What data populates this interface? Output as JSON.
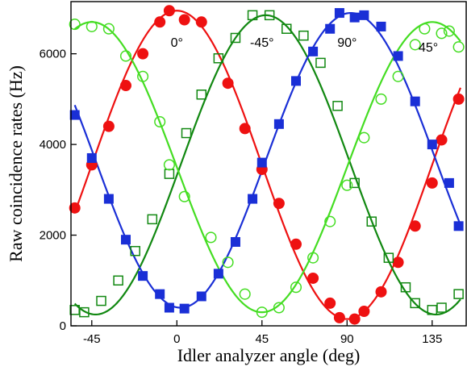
{
  "chart_data": {
    "type": "scatter",
    "title": "",
    "xlabel": "Idler analyzer angle (deg)",
    "ylabel": "Raw coincidence rates (Hz)",
    "xlim": [
      -56,
      153
    ],
    "ylim": [
      0,
      7150
    ],
    "xticks": [
      -45,
      0,
      45,
      90,
      135
    ],
    "yticks": [
      0,
      2000,
      4000,
      6000
    ],
    "grid": false,
    "series": [
      {
        "name": "0°",
        "color": "#ee1111",
        "marker": "filled-circle",
        "fit": {
          "offset": 3550,
          "amplitude": 3400,
          "center": 0
        },
        "label_pos": [
          0,
          6150
        ],
        "points": [
          {
            "x": -54,
            "y": 2600
          },
          {
            "x": -45,
            "y": 3550
          },
          {
            "x": -36,
            "y": 4400
          },
          {
            "x": -27,
            "y": 5300
          },
          {
            "x": -18,
            "y": 6000
          },
          {
            "x": -9,
            "y": 6700
          },
          {
            "x": -4,
            "y": 6950
          },
          {
            "x": 4,
            "y": 6750
          },
          {
            "x": 13,
            "y": 6700
          },
          {
            "x": 27,
            "y": 5350
          },
          {
            "x": 36,
            "y": 4350
          },
          {
            "x": 45,
            "y": 3450
          },
          {
            "x": 54,
            "y": 2700
          },
          {
            "x": 63,
            "y": 1800
          },
          {
            "x": 72,
            "y": 1050
          },
          {
            "x": 81,
            "y": 500
          },
          {
            "x": 86,
            "y": 180
          },
          {
            "x": 94,
            "y": 150
          },
          {
            "x": 99,
            "y": 320
          },
          {
            "x": 108,
            "y": 750
          },
          {
            "x": 117,
            "y": 1400
          },
          {
            "x": 126,
            "y": 2200
          },
          {
            "x": 135,
            "y": 3150
          },
          {
            "x": 140,
            "y": 4100
          },
          {
            "x": 149,
            "y": 5000
          }
        ]
      },
      {
        "name": "-45°",
        "color": "#118811",
        "marker": "open-square",
        "fit": {
          "offset": 3550,
          "amplitude": 3300,
          "center": 47
        },
        "label_pos": [
          45,
          6150
        ],
        "points": [
          {
            "x": -54,
            "y": 350
          },
          {
            "x": -49,
            "y": 300
          },
          {
            "x": -40,
            "y": 550
          },
          {
            "x": -31,
            "y": 1000
          },
          {
            "x": -22,
            "y": 1650
          },
          {
            "x": -13,
            "y": 2350
          },
          {
            "x": -4,
            "y": 3350
          },
          {
            "x": 5,
            "y": 4250
          },
          {
            "x": 13,
            "y": 5100
          },
          {
            "x": 22,
            "y": 5900
          },
          {
            "x": 31,
            "y": 6350
          },
          {
            "x": 40,
            "y": 6850
          },
          {
            "x": 49,
            "y": 6850
          },
          {
            "x": 58,
            "y": 6550
          },
          {
            "x": 67,
            "y": 6400
          },
          {
            "x": 76,
            "y": 5800
          },
          {
            "x": 85,
            "y": 4850
          },
          {
            "x": 94,
            "y": 3150
          },
          {
            "x": 103,
            "y": 2300
          },
          {
            "x": 112,
            "y": 1500
          },
          {
            "x": 121,
            "y": 850
          },
          {
            "x": 126,
            "y": 500
          },
          {
            "x": 135,
            "y": 350
          },
          {
            "x": 140,
            "y": 400
          },
          {
            "x": 149,
            "y": 700
          }
        ]
      },
      {
        "name": "90°",
        "color": "#1a2fd6",
        "marker": "filled-square",
        "fit": {
          "offset": 3650,
          "amplitude": 3250,
          "center": 92
        },
        "label_pos": [
          90,
          6150
        ],
        "points": [
          {
            "x": -54,
            "y": 4650
          },
          {
            "x": -45,
            "y": 3700
          },
          {
            "x": -36,
            "y": 2800
          },
          {
            "x": -27,
            "y": 1900
          },
          {
            "x": -18,
            "y": 1100
          },
          {
            "x": -9,
            "y": 700
          },
          {
            "x": -4,
            "y": 400
          },
          {
            "x": 4,
            "y": 380
          },
          {
            "x": 13,
            "y": 650
          },
          {
            "x": 22,
            "y": 1150
          },
          {
            "x": 31,
            "y": 1850
          },
          {
            "x": 40,
            "y": 2800
          },
          {
            "x": 45,
            "y": 3600
          },
          {
            "x": 54,
            "y": 4450
          },
          {
            "x": 63,
            "y": 5400
          },
          {
            "x": 72,
            "y": 6050
          },
          {
            "x": 81,
            "y": 6550
          },
          {
            "x": 86,
            "y": 6900
          },
          {
            "x": 94,
            "y": 6800
          },
          {
            "x": 99,
            "y": 6850
          },
          {
            "x": 108,
            "y": 6600
          },
          {
            "x": 117,
            "y": 5950
          },
          {
            "x": 126,
            "y": 4950
          },
          {
            "x": 135,
            "y": 4000
          },
          {
            "x": 144,
            "y": 3150
          },
          {
            "x": 149,
            "y": 2200
          }
        ]
      },
      {
        "name": "45°",
        "color": "#44dd22",
        "marker": "open-circle",
        "fit": {
          "offset": 3500,
          "amplitude": 3200,
          "center": 135
        },
        "label_pos": [
          133,
          6050
        ],
        "points": [
          {
            "x": -54,
            "y": 6650
          },
          {
            "x": -45,
            "y": 6600
          },
          {
            "x": -36,
            "y": 6550
          },
          {
            "x": -27,
            "y": 5950
          },
          {
            "x": -18,
            "y": 5500
          },
          {
            "x": -9,
            "y": 4500
          },
          {
            "x": -4,
            "y": 3550
          },
          {
            "x": 4,
            "y": 2850
          },
          {
            "x": 18,
            "y": 1950
          },
          {
            "x": 27,
            "y": 1400
          },
          {
            "x": 36,
            "y": 700
          },
          {
            "x": 45,
            "y": 300
          },
          {
            "x": 54,
            "y": 400
          },
          {
            "x": 63,
            "y": 850
          },
          {
            "x": 72,
            "y": 1500
          },
          {
            "x": 81,
            "y": 2300
          },
          {
            "x": 90,
            "y": 3100
          },
          {
            "x": 99,
            "y": 4150
          },
          {
            "x": 108,
            "y": 5000
          },
          {
            "x": 117,
            "y": 5500
          },
          {
            "x": 126,
            "y": 6200
          },
          {
            "x": 131,
            "y": 6550
          },
          {
            "x": 140,
            "y": 6450
          },
          {
            "x": 144,
            "y": 6500
          },
          {
            "x": 149,
            "y": 6150
          }
        ]
      }
    ]
  }
}
